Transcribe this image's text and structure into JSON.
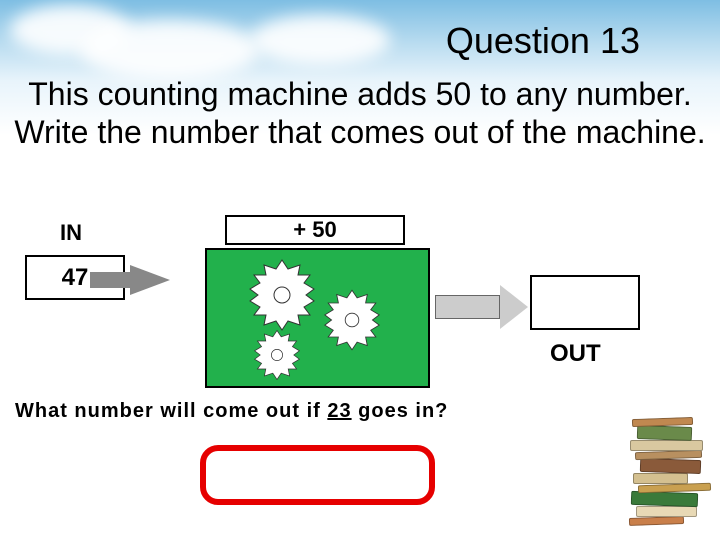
{
  "header": {
    "question_label": "Question 13"
  },
  "prompt": {
    "text": "This counting machine adds 50 to any number. Write the number that comes out of the machine."
  },
  "machine": {
    "in_label": "IN",
    "in_value": "47",
    "operation": "+ 50",
    "out_label": "OUT",
    "out_value": "",
    "colors": {
      "gear_bg": "#22b14c",
      "gear_fill": "#ffffff",
      "arrow_in": "#888888",
      "arrow_out": "#cccccc",
      "box_border": "#000000"
    }
  },
  "subprompt": {
    "prefix": "What number will come out if ",
    "number": "23",
    "suffix": " goes in?"
  },
  "answer_box": {
    "border_color": "#e60000",
    "value": ""
  },
  "decor": {
    "book_colors": [
      "#c97f4a",
      "#e8d9b5",
      "#3a7a3a",
      "#c9a050",
      "#d4c090",
      "#8a5a3a",
      "#b89060",
      "#d9c8a0",
      "#6a8a4a",
      "#c08850"
    ]
  }
}
